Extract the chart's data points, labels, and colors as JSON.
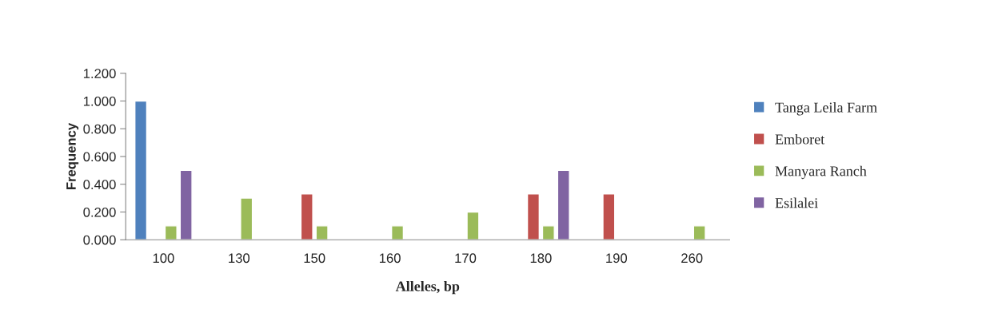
{
  "chart_data": {
    "type": "bar",
    "xlabel": "Alleles, bp",
    "ylabel": "Frequency",
    "categories": [
      "100",
      "130",
      "150",
      "160",
      "170",
      "180",
      "190",
      "260"
    ],
    "series": [
      {
        "name": "Tanga Leila Farm",
        "color": "#4f81bd",
        "values": [
          1.0,
          null,
          null,
          null,
          null,
          null,
          null,
          null
        ]
      },
      {
        "name": "Emboret",
        "color": "#c0504d",
        "values": [
          null,
          null,
          0.33,
          null,
          null,
          0.33,
          0.33,
          null
        ]
      },
      {
        "name": "Manyara Ranch",
        "color": "#9bbb59",
        "values": [
          0.1,
          0.3,
          0.1,
          0.1,
          0.2,
          0.1,
          null,
          0.1
        ]
      },
      {
        "name": "Esilalei",
        "color": "#8064a2",
        "values": [
          0.5,
          null,
          null,
          null,
          null,
          0.5,
          null,
          null
        ]
      }
    ],
    "ylim": [
      0,
      1.2
    ],
    "yticks": [
      {
        "value": 0,
        "label": "0.000"
      },
      {
        "value": 0.2,
        "label": "0.200"
      },
      {
        "value": 0.4,
        "label": "0.400"
      },
      {
        "value": 0.6,
        "label": "0.600"
      },
      {
        "value": 0.8,
        "label": "0.800"
      },
      {
        "value": 1.0,
        "label": "1.000"
      },
      {
        "value": 1.2,
        "label": "1.200"
      }
    ],
    "grid": false,
    "legend": "right"
  }
}
